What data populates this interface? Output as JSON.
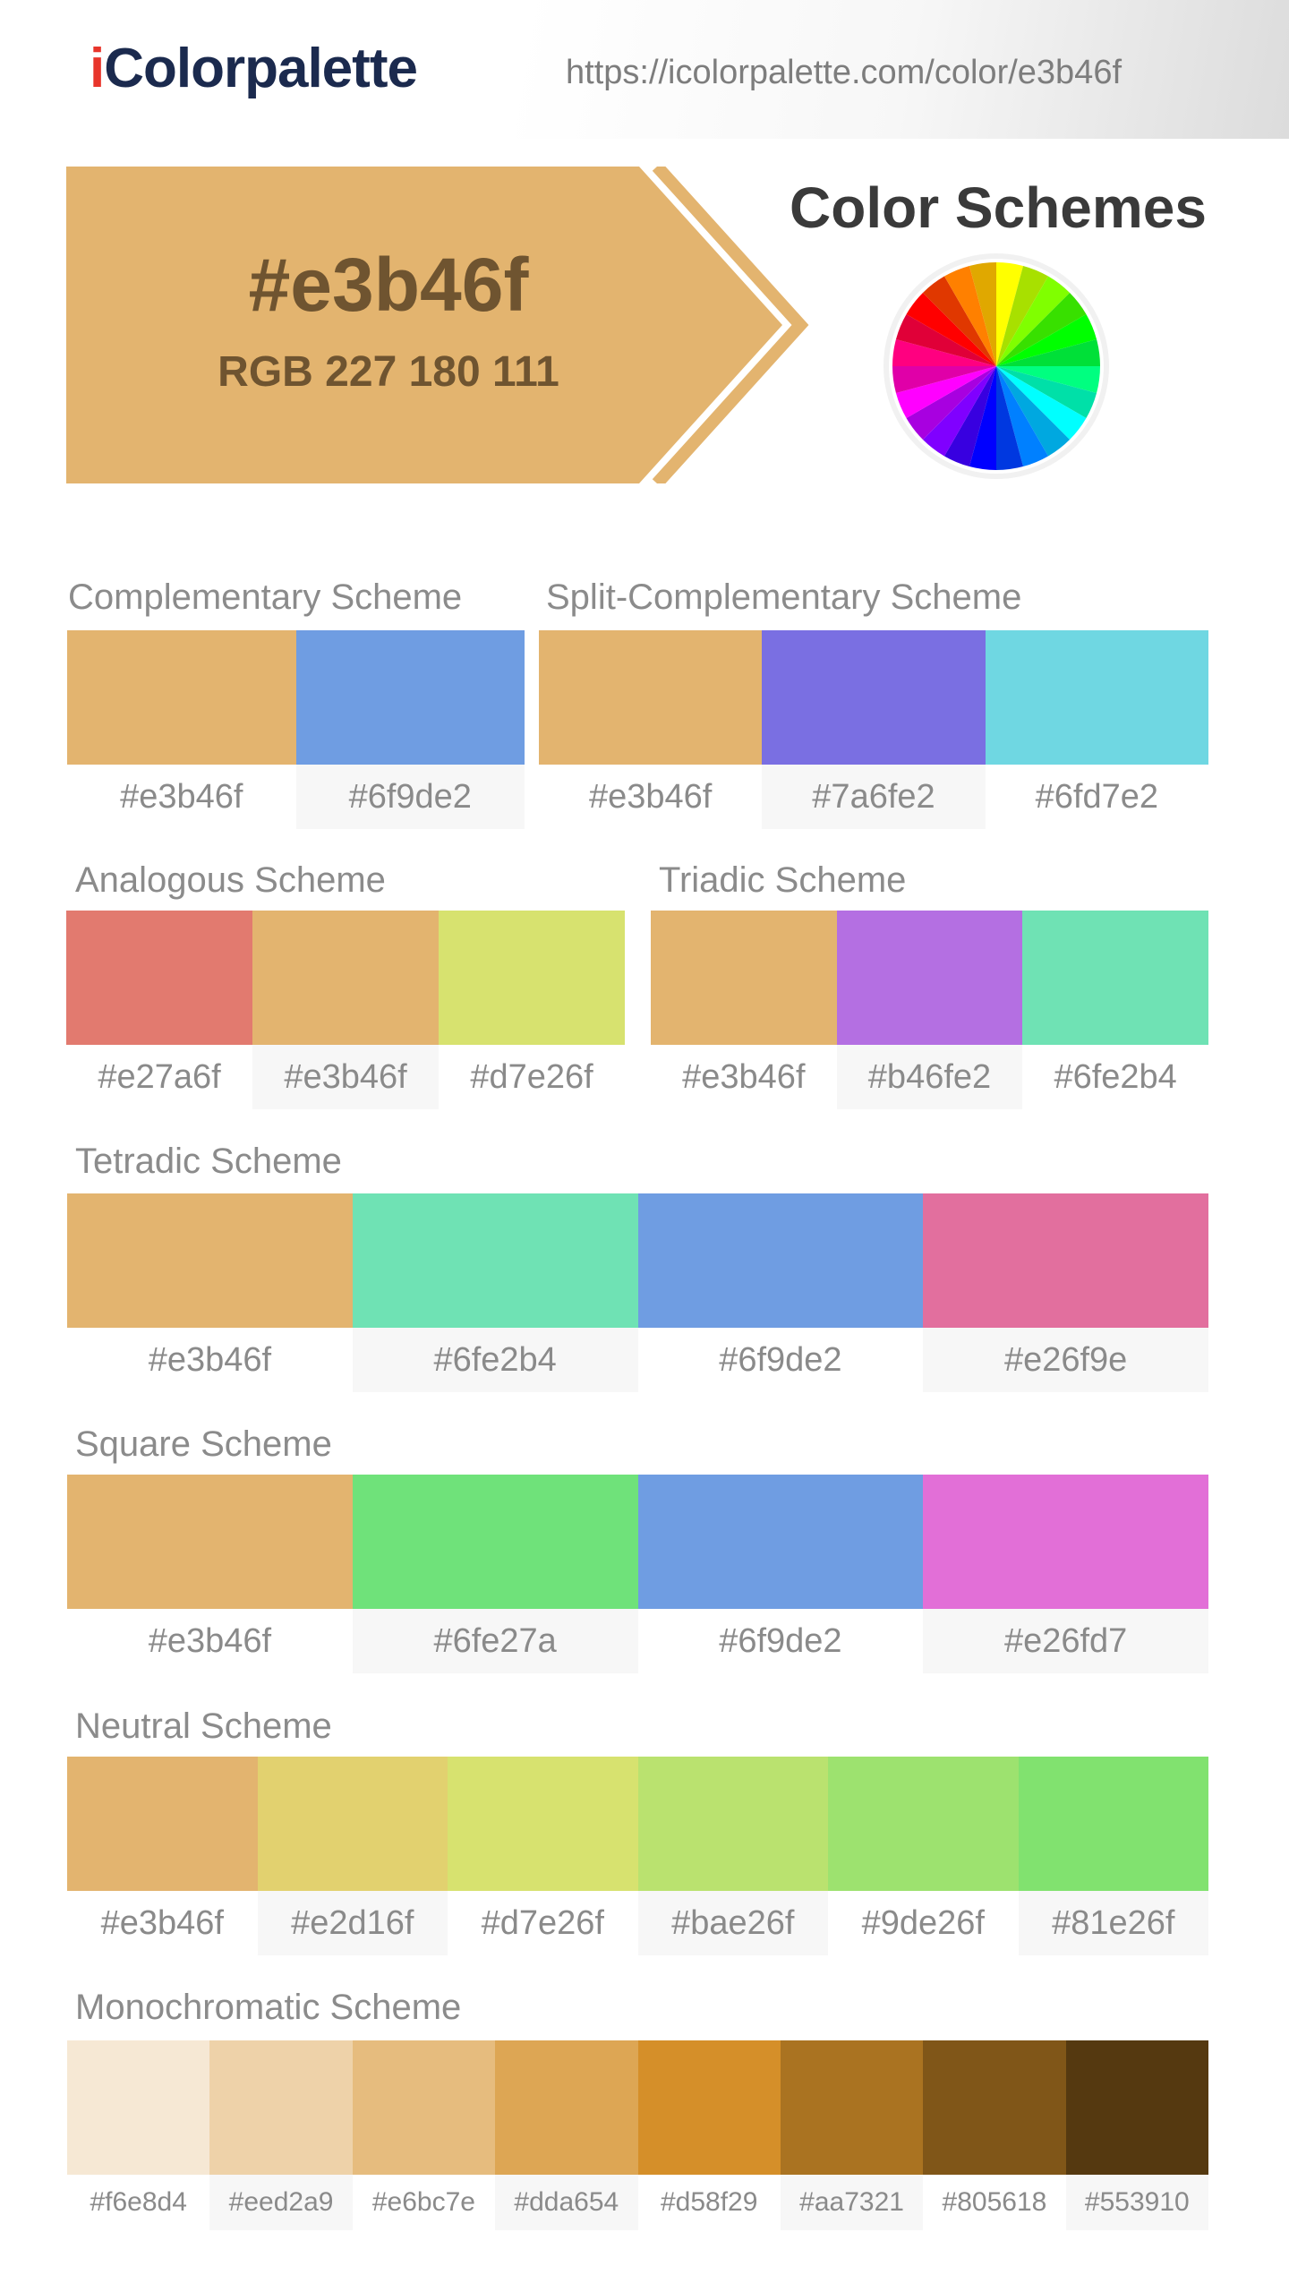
{
  "header": {
    "logo_i": "i",
    "logo_rest": "Colorpalette",
    "url": "https://icolorpalette.com/color/e3b46f"
  },
  "hero": {
    "hex": "#e3b46f",
    "rgb": "RGB 227 180 111",
    "base_color": "#e3b46f",
    "text_color": "#6f5430"
  },
  "schemes_title": "Color Schemes",
  "color_wheel_icon": "color-wheel-icon",
  "schemes": {
    "complementary": {
      "title": "Complementary Scheme",
      "colors": [
        "#e3b46f",
        "#6f9de2"
      ]
    },
    "split_complementary": {
      "title": "Split-Complementary Scheme",
      "colors": [
        "#e3b46f",
        "#7a6fe2",
        "#6fd7e2"
      ]
    },
    "analogous": {
      "title": "Analogous Scheme",
      "colors": [
        "#e27a6f",
        "#e3b46f",
        "#d7e26f"
      ]
    },
    "triadic": {
      "title": "Triadic Scheme",
      "colors": [
        "#e3b46f",
        "#b46fe2",
        "#6fe2b4"
      ]
    },
    "tetradic": {
      "title": "Tetradic Scheme",
      "colors": [
        "#e3b46f",
        "#6fe2b4",
        "#6f9de2",
        "#e26f9e"
      ]
    },
    "square": {
      "title": "Square Scheme",
      "colors": [
        "#e3b46f",
        "#6fe27a",
        "#6f9de2",
        "#e26fd7"
      ]
    },
    "neutral": {
      "title": "Neutral Scheme",
      "colors": [
        "#e3b46f",
        "#e2d16f",
        "#d7e26f",
        "#bae26f",
        "#9de26f",
        "#81e26f"
      ]
    },
    "monochromatic": {
      "title": "Monochromatic Scheme",
      "colors": [
        "#f6e8d4",
        "#eed2a9",
        "#e6bc7e",
        "#dda654",
        "#d58f29",
        "#aa7321",
        "#805618",
        "#553910"
      ]
    }
  }
}
